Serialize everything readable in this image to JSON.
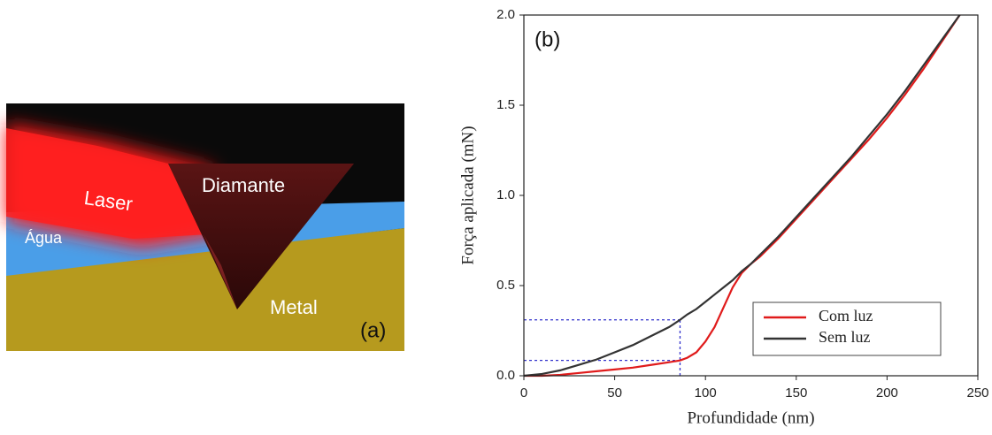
{
  "panel_a": {
    "laser": "Laser",
    "diamond": "Diamante",
    "water": "Água",
    "metal": "Metal",
    "tag": "(a)"
  },
  "chart_data": {
    "type": "line",
    "tag": "(b)",
    "x_label": "Profundidade (nm)",
    "y_label": "Força aplicada (mN)",
    "x": [
      0,
      10,
      20,
      30,
      40,
      50,
      60,
      70,
      80,
      86,
      90,
      95,
      100,
      105,
      110,
      115,
      120,
      125,
      130,
      140,
      150,
      160,
      170,
      180,
      190,
      200,
      210,
      220,
      230,
      240
    ],
    "series": [
      {
        "name": "Com luz",
        "color": "#e01b1b",
        "values": [
          0,
          0,
          0.005,
          0.015,
          0.025,
          0.035,
          0.045,
          0.06,
          0.075,
          0.085,
          0.1,
          0.13,
          0.19,
          0.27,
          0.38,
          0.49,
          0.57,
          0.62,
          0.66,
          0.76,
          0.87,
          0.98,
          1.09,
          1.2,
          1.31,
          1.43,
          1.56,
          1.7,
          1.85,
          2.0
        ]
      },
      {
        "name": "Sem luz",
        "color": "#333333",
        "values": [
          0,
          0.01,
          0.03,
          0.06,
          0.09,
          0.13,
          0.17,
          0.22,
          0.27,
          0.31,
          0.34,
          0.37,
          0.41,
          0.45,
          0.49,
          0.53,
          0.58,
          0.62,
          0.67,
          0.77,
          0.88,
          0.99,
          1.1,
          1.21,
          1.33,
          1.45,
          1.58,
          1.72,
          1.86,
          2.0
        ]
      }
    ],
    "guides": {
      "x": 86,
      "y": [
        0.31,
        0.085
      ],
      "color": "#3333cc"
    },
    "xlim": [
      0,
      250
    ],
    "xticks": [
      0,
      50,
      100,
      150,
      200,
      250
    ],
    "ylim": [
      0,
      2
    ],
    "yticks": [
      {
        "value": 0,
        "label": "0.0"
      },
      0.5,
      {
        "value": 1,
        "label": "1.0"
      },
      1.5,
      {
        "value": 2,
        "label": "2.0"
      }
    ],
    "legend": "lower right"
  }
}
